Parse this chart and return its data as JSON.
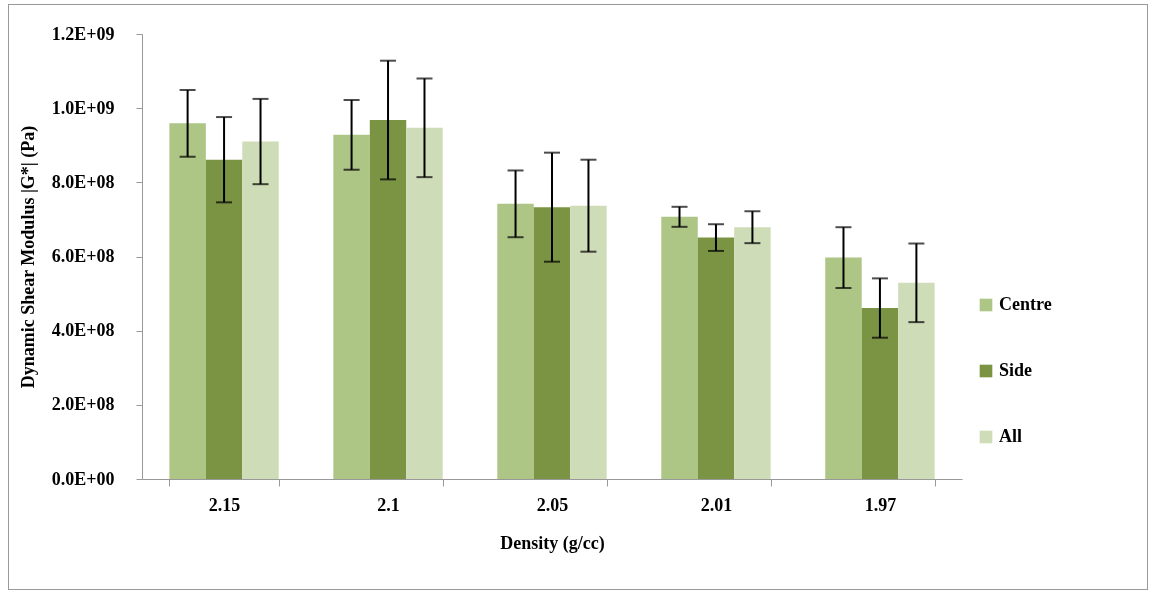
{
  "chart_data": {
    "type": "bar",
    "xlabel": "Density  (g/cc)",
    "ylabel": "Dynamic Shear Modulus |G*| (Pa)",
    "categories": [
      "2.15",
      "2.1",
      "2.05",
      "2.01",
      "1.97"
    ],
    "series": [
      {
        "name": "Centre",
        "color": "#adc585",
        "values": [
          959000000,
          928000000,
          742000000,
          707000000,
          597000000
        ],
        "errors": [
          90000000,
          94000000,
          90000000,
          27000000,
          82000000
        ]
      },
      {
        "name": "Side",
        "color": "#7a9444",
        "values": [
          861000000,
          968000000,
          733000000,
          651000000,
          461000000
        ],
        "errors": [
          115000000,
          160000000,
          147000000,
          36000000,
          80000000
        ]
      },
      {
        "name": "All",
        "color": "#cfdcb8",
        "values": [
          910000000,
          947000000,
          737000000,
          679000000,
          529000000
        ],
        "errors": [
          115000000,
          133000000,
          124000000,
          43000000,
          106000000
        ]
      }
    ],
    "ylim": [
      0,
      1200000000
    ],
    "yticks": [
      {
        "value": 0,
        "label": "0.0E+00"
      },
      {
        "value": 200000000,
        "label": "2.0E+08"
      },
      {
        "value": 400000000,
        "label": "4.0E+08"
      },
      {
        "value": 600000000,
        "label": "6.0E+08"
      },
      {
        "value": 800000000,
        "label": "8.0E+08"
      },
      {
        "value": 1000000000,
        "label": "1.0E+09"
      },
      {
        "value": 1200000000,
        "label": "1.2E+09"
      }
    ],
    "grid": false,
    "legend": "right"
  }
}
